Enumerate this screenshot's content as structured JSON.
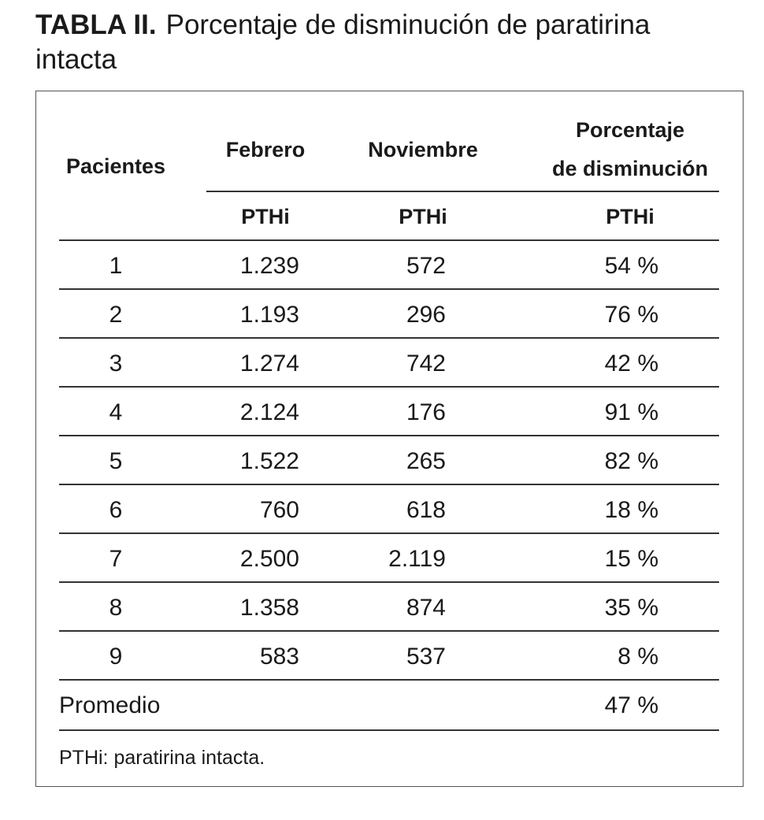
{
  "title": {
    "label": "TABLA II.",
    "text": "Porcentaje de disminución de paratirina intacta"
  },
  "table": {
    "headers": [
      "Pacientes",
      "Febrero",
      "Noviembre",
      [
        "Porcentaje",
        "de disminución"
      ]
    ],
    "subheaders": [
      "PTHi",
      "PTHi",
      "PTHi"
    ],
    "rows": [
      [
        "1",
        "1.239",
        "572",
        "54 %"
      ],
      [
        "2",
        "1.193",
        "296",
        "76 %"
      ],
      [
        "3",
        "1.274",
        "742",
        "42 %"
      ],
      [
        "4",
        "2.124",
        "176",
        "91 %"
      ],
      [
        "5",
        "1.522",
        "265",
        "82 %"
      ],
      [
        "6",
        "760",
        "618",
        "18 %"
      ],
      [
        "7",
        "2.500",
        "2.119",
        "15 %"
      ],
      [
        "8",
        "1.358",
        "874",
        "35 %"
      ],
      [
        "9",
        "583",
        "537",
        "8 %"
      ]
    ],
    "summary": {
      "label": "Promedio",
      "value": "47 %"
    },
    "footnote": "PTHi: paratirina intacta."
  }
}
